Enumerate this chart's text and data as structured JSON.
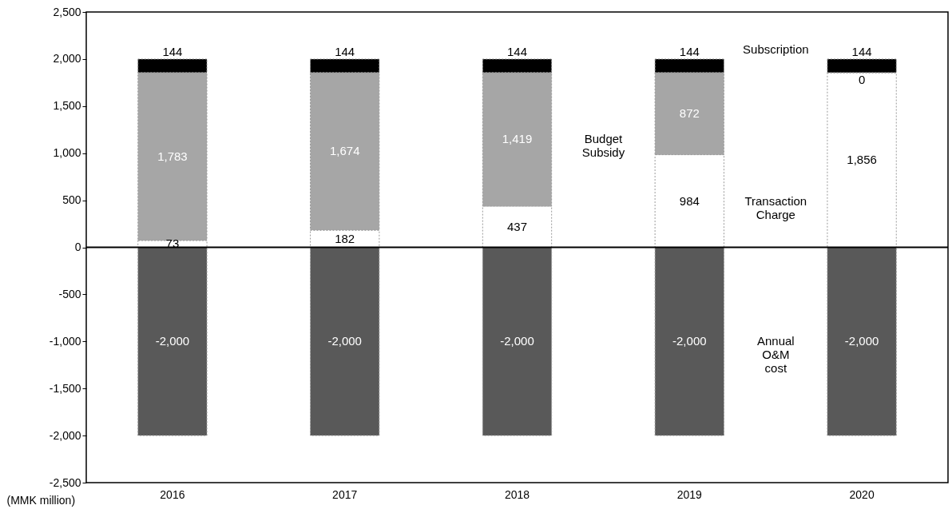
{
  "chart_data": {
    "type": "bar",
    "stacked": true,
    "categories": [
      "2016",
      "2017",
      "2018",
      "2019",
      "2020"
    ],
    "series": [
      {
        "name": "Transaction Charge",
        "color": "#ffffff",
        "values": [
          73,
          182,
          437,
          984,
          1856
        ],
        "value_labels": [
          "73",
          "182",
          "437",
          "984",
          "1,856"
        ]
      },
      {
        "name": "Budget Subsidy",
        "color": "#a6a6a6",
        "values": [
          1783,
          1674,
          1419,
          872,
          0
        ],
        "value_labels": [
          "1,783",
          "1,674",
          "1,419",
          "872",
          "0"
        ]
      },
      {
        "name": "Subscription",
        "color": "#000000",
        "values": [
          144,
          144,
          144,
          144,
          144
        ],
        "value_labels": [
          "144",
          "144",
          "144",
          "144",
          "144"
        ]
      },
      {
        "name": "Annual O&M cost",
        "color": "#595959",
        "values": [
          -2000,
          -2000,
          -2000,
          -2000,
          -2000
        ],
        "value_labels": [
          "-2,000",
          "-2,000",
          "-2,000",
          "-2,000",
          "-2,000"
        ]
      }
    ],
    "ylabel": "(MMK million)",
    "ylim": [
      -2500,
      2500
    ],
    "yticks": [
      {
        "value": -2500,
        "label": "-2,500"
      },
      {
        "value": -2000,
        "label": "-2,000"
      },
      {
        "value": -1500,
        "label": "-1,500"
      },
      {
        "value": -1000,
        "label": "-1,000"
      },
      {
        "value": -500,
        "label": "-500"
      },
      0,
      {
        "value": 500,
        "label": "500"
      },
      {
        "value": 1000,
        "label": "1,000"
      },
      {
        "value": 1500,
        "label": "1,500"
      },
      {
        "value": 2000,
        "label": "2,000"
      },
      {
        "value": 2500,
        "label": "2,500"
      }
    ],
    "ref_lines": [
      {
        "axis": "y",
        "value": 0,
        "color": "#000000"
      }
    ],
    "grid": false,
    "legend": false
  }
}
